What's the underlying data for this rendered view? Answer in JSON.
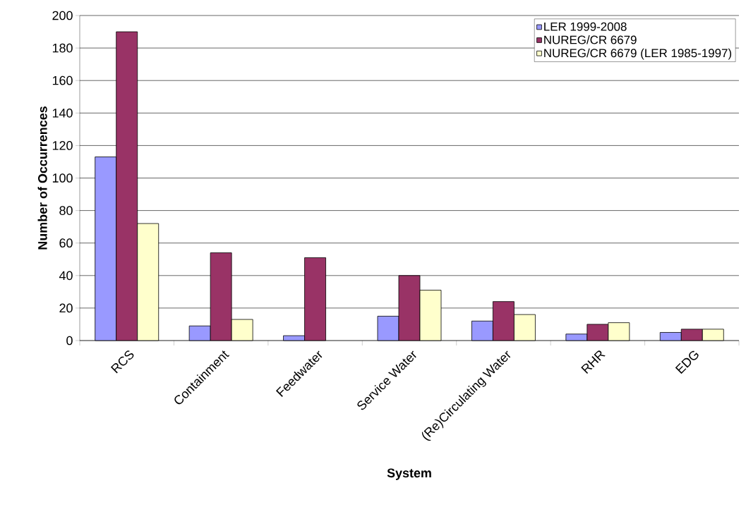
{
  "chart_data": {
    "type": "bar",
    "xlabel": "System",
    "ylabel": "Number of Occurrences",
    "categories": [
      "RCS",
      "Containment",
      "Feedwater",
      "Service Water",
      "(Re)Circulating Water",
      "RHR",
      "EDG"
    ],
    "series": [
      {
        "name": "LER 1999-2008",
        "color": "#9999ff",
        "values": [
          113,
          9,
          3,
          15,
          12,
          4,
          5
        ]
      },
      {
        "name": "NUREG/CR 6679",
        "color": "#993366",
        "values": [
          190,
          54,
          51,
          40,
          24,
          10,
          7
        ]
      },
      {
        "name": "NUREG/CR 6679 (LER 1985-1997)",
        "color": "#ffffcc",
        "values": [
          72,
          13,
          null,
          31,
          16,
          11,
          7
        ]
      }
    ],
    "ylim": [
      0,
      200
    ],
    "yticks": [
      0,
      20,
      40,
      60,
      80,
      100,
      120,
      140,
      160,
      180,
      200
    ],
    "grid": "y",
    "legend": "top right"
  }
}
